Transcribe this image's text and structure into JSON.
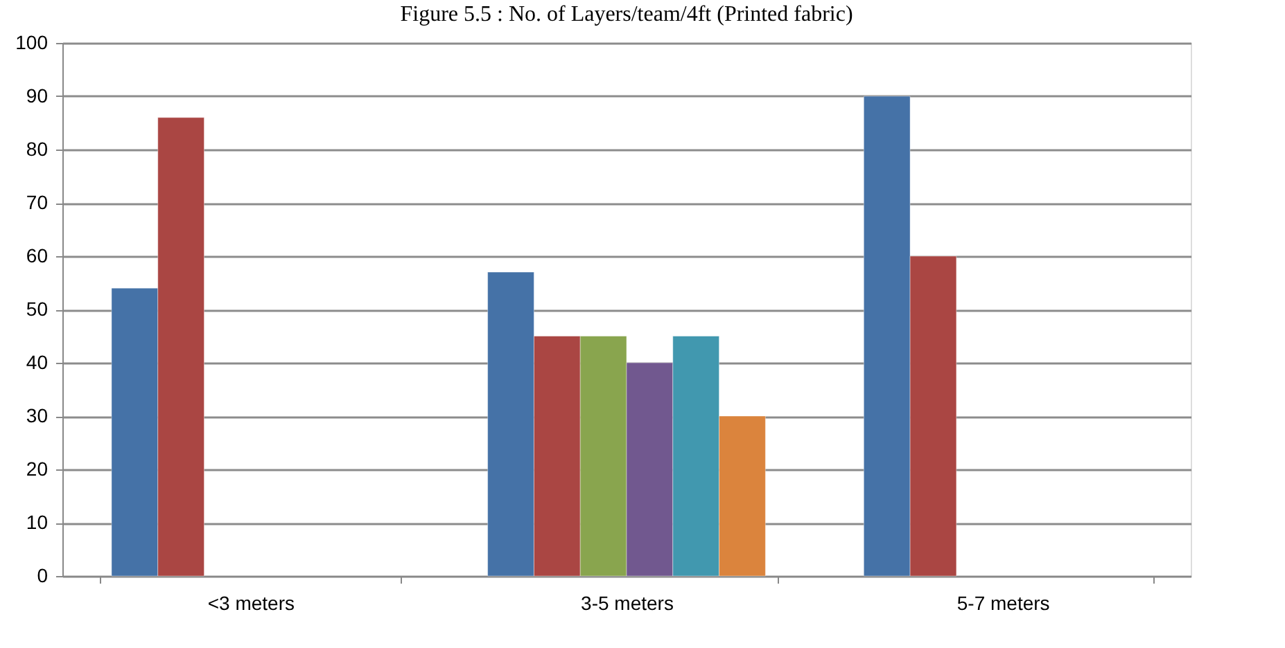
{
  "chart_data": {
    "type": "bar",
    "title": "Figure 5.5 : No. of Layers/team/4ft (Printed fabric)",
    "categories": [
      "<3 meters",
      "3-5 meters",
      "5-7 meters"
    ],
    "series": [
      {
        "color": "#4572a7",
        "values": [
          54,
          57,
          90
        ]
      },
      {
        "color": "#aa4643",
        "values": [
          86,
          45,
          60
        ]
      },
      {
        "color": "#89a54e",
        "values": [
          null,
          45,
          null
        ]
      },
      {
        "color": "#71588f",
        "values": [
          null,
          40,
          null
        ]
      },
      {
        "color": "#4198af",
        "values": [
          null,
          45,
          null
        ]
      },
      {
        "color": "#db843d",
        "values": [
          null,
          30,
          null
        ]
      }
    ],
    "ylim": [
      0,
      100
    ],
    "yticks": [
      0,
      10,
      20,
      30,
      40,
      50,
      60,
      70,
      80,
      90,
      100
    ],
    "grid": "y",
    "legend": false
  }
}
